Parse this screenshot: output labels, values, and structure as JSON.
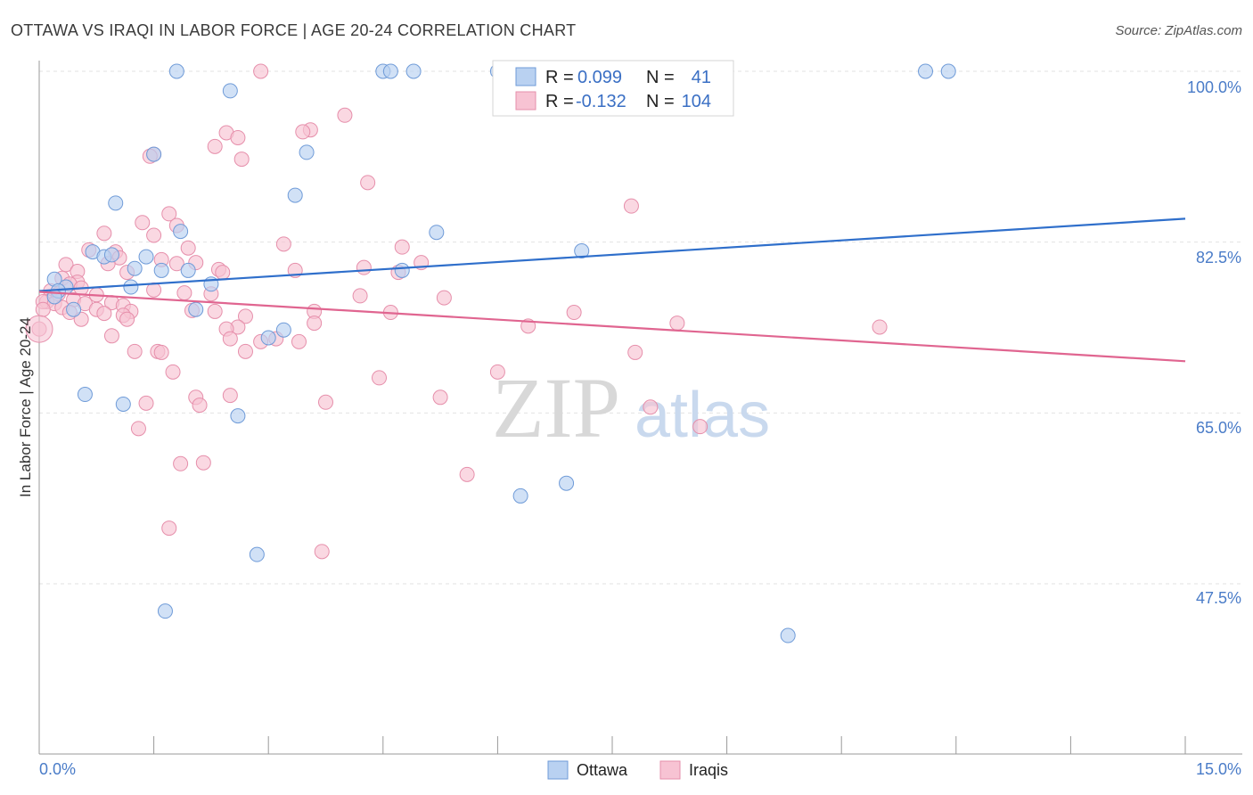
{
  "chart_data": {
    "type": "scatter",
    "title": "OTTAWA VS IRAQI IN LABOR FORCE | AGE 20-24 CORRELATION CHART",
    "source": "Source: ZipAtlas.com",
    "ylabel": "In Labor Force | Age 20-24",
    "xlabel": "",
    "xlim": [
      0,
      15
    ],
    "ylim": [
      32.5,
      102
    ],
    "x_tick_labels": [
      {
        "value": 0,
        "label": "0.0%"
      },
      {
        "value": 15,
        "label": "15.0%"
      }
    ],
    "y_tick_labels": [
      {
        "value": 100,
        "label": "100.0%"
      },
      {
        "value": 82.5,
        "label": "82.5%"
      },
      {
        "value": 65,
        "label": "65.0%"
      },
      {
        "value": 47.5,
        "label": "47.5%"
      }
    ],
    "watermark": {
      "zip": "ZIP",
      "atlas": "atlas"
    },
    "legend": {
      "r_label": "R =",
      "n_label": "N =",
      "entries": [
        {
          "name": "Ottawa",
          "r": "0.099",
          "n": "41"
        },
        {
          "name": "Iraqis",
          "r": "-0.132",
          "n": "104"
        }
      ]
    },
    "colors": {
      "ottawa_fill": "#b9d1f1",
      "ottawa_stroke": "#6f9bd8",
      "ottawa_line": "#2f6fcb",
      "iraqis_fill": "#f7c3d3",
      "iraqis_stroke": "#e68fab",
      "iraqis_line": "#e06590",
      "grid": "#e2e2e2",
      "axis": "#999999"
    },
    "series": [
      {
        "name": "Ottawa",
        "trend": {
          "x": [
            0,
            15
          ],
          "y": [
            77.5,
            84.9
          ]
        },
        "points": [
          {
            "x": 1.8,
            "y": 100
          },
          {
            "x": 4.5,
            "y": 100
          },
          {
            "x": 4.6,
            "y": 100
          },
          {
            "x": 4.9,
            "y": 100
          },
          {
            "x": 6.0,
            "y": 100
          },
          {
            "x": 11.6,
            "y": 100
          },
          {
            "x": 11.9,
            "y": 100
          },
          {
            "x": 2.5,
            "y": 98
          },
          {
            "x": 1.5,
            "y": 91.5
          },
          {
            "x": 3.5,
            "y": 91.7
          },
          {
            "x": 3.35,
            "y": 87.3
          },
          {
            "x": 1.0,
            "y": 86.5
          },
          {
            "x": 5.2,
            "y": 83.5
          },
          {
            "x": 1.85,
            "y": 83.6
          },
          {
            "x": 7.1,
            "y": 81.6
          },
          {
            "x": 0.7,
            "y": 81.5
          },
          {
            "x": 1.4,
            "y": 81
          },
          {
            "x": 0.85,
            "y": 81
          },
          {
            "x": 0.95,
            "y": 81.2
          },
          {
            "x": 1.25,
            "y": 79.8
          },
          {
            "x": 1.6,
            "y": 79.6
          },
          {
            "x": 1.95,
            "y": 79.6
          },
          {
            "x": 4.75,
            "y": 79.6
          },
          {
            "x": 2.25,
            "y": 78.2
          },
          {
            "x": 0.2,
            "y": 78.7
          },
          {
            "x": 1.2,
            "y": 77.9
          },
          {
            "x": 0.35,
            "y": 77.9
          },
          {
            "x": 0.25,
            "y": 77.5
          },
          {
            "x": 0.2,
            "y": 76.9
          },
          {
            "x": 0.45,
            "y": 75.6
          },
          {
            "x": 2.05,
            "y": 75.6
          },
          {
            "x": 3.2,
            "y": 73.5
          },
          {
            "x": 3.0,
            "y": 72.7
          },
          {
            "x": 0.6,
            "y": 66.9
          },
          {
            "x": 1.1,
            "y": 65.9
          },
          {
            "x": 2.6,
            "y": 64.7
          },
          {
            "x": 6.3,
            "y": 56.5
          },
          {
            "x": 6.9,
            "y": 57.8
          },
          {
            "x": 2.85,
            "y": 50.5
          },
          {
            "x": 1.65,
            "y": 44.7
          },
          {
            "x": 9.8,
            "y": 42.2
          }
        ]
      },
      {
        "name": "Iraqis",
        "trend": {
          "x": [
            0,
            15
          ],
          "y": [
            77.4,
            70.3
          ]
        },
        "points": [
          {
            "x": 2.9,
            "y": 100
          },
          {
            "x": 4.0,
            "y": 95.5
          },
          {
            "x": 3.55,
            "y": 94
          },
          {
            "x": 3.45,
            "y": 93.8
          },
          {
            "x": 2.45,
            "y": 93.7
          },
          {
            "x": 2.6,
            "y": 93.2
          },
          {
            "x": 2.3,
            "y": 92.3
          },
          {
            "x": 1.5,
            "y": 91.5
          },
          {
            "x": 1.45,
            "y": 91.3
          },
          {
            "x": 2.65,
            "y": 91
          },
          {
            "x": 4.3,
            "y": 88.6
          },
          {
            "x": 7.75,
            "y": 86.2
          },
          {
            "x": 1.7,
            "y": 85.4
          },
          {
            "x": 1.35,
            "y": 84.5
          },
          {
            "x": 1.8,
            "y": 84.2
          },
          {
            "x": 0.85,
            "y": 83.4
          },
          {
            "x": 1.5,
            "y": 83.2
          },
          {
            "x": 3.2,
            "y": 82.3
          },
          {
            "x": 4.75,
            "y": 82
          },
          {
            "x": 1.95,
            "y": 81.9
          },
          {
            "x": 0.65,
            "y": 81.7
          },
          {
            "x": 1.0,
            "y": 81.5
          },
          {
            "x": 1.05,
            "y": 80.9
          },
          {
            "x": 1.6,
            "y": 80.7
          },
          {
            "x": 0.9,
            "y": 80.3
          },
          {
            "x": 5.0,
            "y": 80.4
          },
          {
            "x": 2.05,
            "y": 80.4
          },
          {
            "x": 0.35,
            "y": 80.2
          },
          {
            "x": 1.8,
            "y": 80.3
          },
          {
            "x": 4.25,
            "y": 79.9
          },
          {
            "x": 2.35,
            "y": 79.7
          },
          {
            "x": 0.5,
            "y": 79.5
          },
          {
            "x": 3.35,
            "y": 79.6
          },
          {
            "x": 2.4,
            "y": 79.4
          },
          {
            "x": 4.7,
            "y": 79.4
          },
          {
            "x": 1.15,
            "y": 79.4
          },
          {
            "x": 0.3,
            "y": 78.8
          },
          {
            "x": 0.5,
            "y": 78.4
          },
          {
            "x": 0.4,
            "y": 78.2
          },
          {
            "x": 0.55,
            "y": 77.8
          },
          {
            "x": 1.5,
            "y": 77.6
          },
          {
            "x": 0.15,
            "y": 77.5
          },
          {
            "x": 1.9,
            "y": 77.3
          },
          {
            "x": 0.25,
            "y": 77.2
          },
          {
            "x": 2.25,
            "y": 77.2
          },
          {
            "x": 0.75,
            "y": 77.1
          },
          {
            "x": 4.2,
            "y": 77
          },
          {
            "x": 5.3,
            "y": 76.8
          },
          {
            "x": 0.45,
            "y": 76.6
          },
          {
            "x": 0.1,
            "y": 76.4
          },
          {
            "x": 0.05,
            "y": 76.4
          },
          {
            "x": 0.2,
            "y": 76.2
          },
          {
            "x": 0.6,
            "y": 76.2
          },
          {
            "x": 0.95,
            "y": 76.3
          },
          {
            "x": 1.1,
            "y": 76
          },
          {
            "x": 0.3,
            "y": 75.8
          },
          {
            "x": 0.05,
            "y": 75.6
          },
          {
            "x": 0.4,
            "y": 75.3
          },
          {
            "x": 0.75,
            "y": 75.6
          },
          {
            "x": 0.85,
            "y": 75.2
          },
          {
            "x": 1.2,
            "y": 75.4
          },
          {
            "x": 1.1,
            "y": 75.0
          },
          {
            "x": 2.0,
            "y": 75.5
          },
          {
            "x": 2.3,
            "y": 75.4
          },
          {
            "x": 3.6,
            "y": 75.4
          },
          {
            "x": 4.6,
            "y": 75.3
          },
          {
            "x": 7.0,
            "y": 75.3
          },
          {
            "x": 0.55,
            "y": 74.6
          },
          {
            "x": 1.15,
            "y": 74.6
          },
          {
            "x": 2.7,
            "y": 74.9
          },
          {
            "x": 3.6,
            "y": 74.2
          },
          {
            "x": 8.35,
            "y": 74.2
          },
          {
            "x": 11.0,
            "y": 73.8
          },
          {
            "x": 6.4,
            "y": 73.9
          },
          {
            "x": 2.6,
            "y": 73.8
          },
          {
            "x": 2.45,
            "y": 73.6
          },
          {
            "x": 0.0,
            "y": 73.6
          },
          {
            "x": 0.95,
            "y": 72.9
          },
          {
            "x": 2.9,
            "y": 72.3
          },
          {
            "x": 3.1,
            "y": 72.6
          },
          {
            "x": 2.5,
            "y": 72.6
          },
          {
            "x": 3.4,
            "y": 72.3
          },
          {
            "x": 1.55,
            "y": 71.3
          },
          {
            "x": 1.6,
            "y": 71.2
          },
          {
            "x": 2.7,
            "y": 71.3
          },
          {
            "x": 1.25,
            "y": 71.3
          },
          {
            "x": 7.8,
            "y": 71.2
          },
          {
            "x": 1.75,
            "y": 69.2
          },
          {
            "x": 6.0,
            "y": 69.2
          },
          {
            "x": 4.45,
            "y": 68.6
          },
          {
            "x": 2.05,
            "y": 66.6
          },
          {
            "x": 2.5,
            "y": 66.8
          },
          {
            "x": 5.25,
            "y": 66.6
          },
          {
            "x": 3.75,
            "y": 66.1
          },
          {
            "x": 1.4,
            "y": 66
          },
          {
            "x": 2.1,
            "y": 65.8
          },
          {
            "x": 8.0,
            "y": 65.6
          },
          {
            "x": 1.3,
            "y": 63.4
          },
          {
            "x": 8.65,
            "y": 63.6
          },
          {
            "x": 1.85,
            "y": 59.8
          },
          {
            "x": 2.15,
            "y": 59.9
          },
          {
            "x": 5.6,
            "y": 58.7
          },
          {
            "x": 1.7,
            "y": 53.2
          },
          {
            "x": 3.7,
            "y": 50.8
          }
        ]
      }
    ]
  }
}
